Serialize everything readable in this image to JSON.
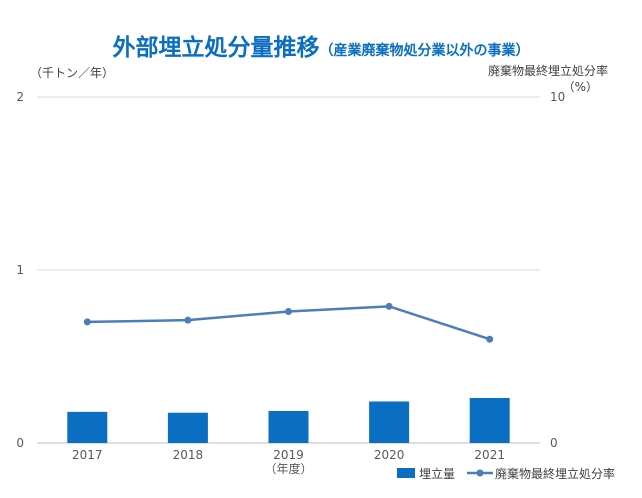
{
  "chart_data": {
    "type": "bar",
    "title": "外部埋立処分量推移",
    "subtitle": "（産業廃棄物処分業以外の事業）",
    "categories": [
      "2017",
      "2018",
      "2019",
      "2020",
      "2021"
    ],
    "xlabel": "（年度）",
    "y_left": {
      "label": "（千トン／年）",
      "ylim": [
        0,
        2
      ],
      "ticks": [
        "0",
        "1",
        "2"
      ]
    },
    "y_right": {
      "label_line1": "廃棄物最終埋立処分率",
      "label_line2": "（%）",
      "ylim": [
        0,
        10
      ],
      "ticks": [
        "0",
        "10"
      ]
    },
    "series": [
      {
        "name": "埋立量",
        "type": "bar",
        "axis": "left",
        "color": "#0a6fc2",
        "values": [
          0.18,
          0.175,
          0.185,
          0.24,
          0.26
        ]
      },
      {
        "name": "廃棄物最終埋立処分率",
        "type": "line",
        "axis": "right",
        "color": "#4a7ebb",
        "values": [
          3.5,
          3.55,
          3.8,
          3.95,
          3.0
        ]
      }
    ],
    "grid": true,
    "legend_position": "bottom-right"
  },
  "colors": {
    "accent": "#0a6fc2",
    "gridline": "#d9d9d9",
    "axis_text": "#595959"
  }
}
